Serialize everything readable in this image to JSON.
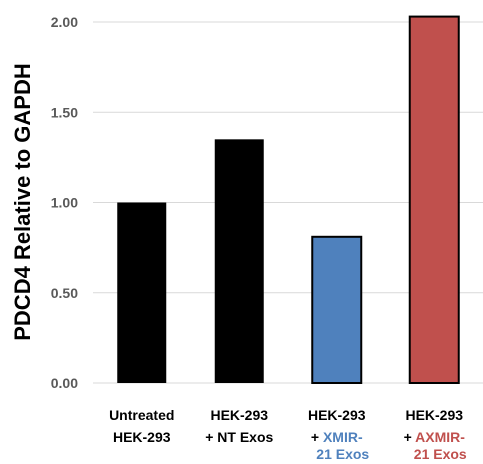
{
  "chart_data": {
    "type": "bar",
    "ylabel": "PDCD4 Relative to GAPDH",
    "ylim": [
      0,
      2.0
    ],
    "yticks": [
      "0.00",
      "0.50",
      "1.00",
      "1.50",
      "2.00"
    ],
    "ytick_values": [
      0,
      0.5,
      1.0,
      1.5,
      2.0
    ],
    "grid": true,
    "categories": [
      {
        "line1": "Untreated",
        "line2": "HEK-293",
        "line2_prefix": "",
        "line3": ""
      },
      {
        "line1": "HEK-293",
        "line2": "NT Exos",
        "line2_prefix": "+ ",
        "line3": ""
      },
      {
        "line1": "HEK-293",
        "line2": "XMIR-",
        "line2_prefix": "+ ",
        "line3": "21 Exos"
      },
      {
        "line1": "HEK-293",
        "line2": "AXMIR-",
        "line2_prefix": "+ ",
        "line3": "21 Exos"
      }
    ],
    "values": [
      1.0,
      1.35,
      0.81,
      2.03
    ],
    "bar_colors": [
      "#000000",
      "#000000",
      "#4F81BD",
      "#C0504D"
    ],
    "label_colors": [
      "#000000",
      "#000000",
      "#4F81BD",
      "#C0504D"
    ]
  }
}
